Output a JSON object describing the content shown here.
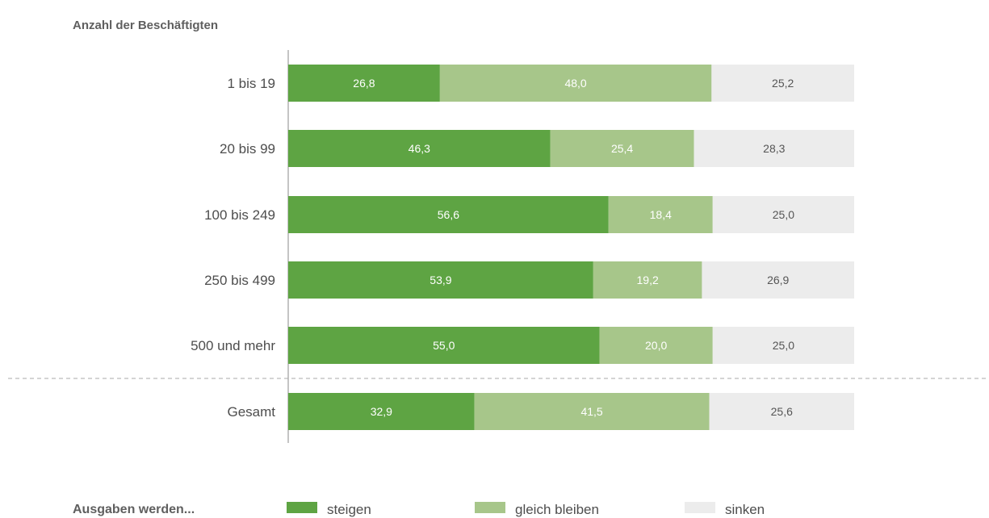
{
  "chart_data": {
    "type": "bar",
    "orientation": "horizontal",
    "stacked": true,
    "ytitle": "Anzahl der Beschäftigten",
    "categories": [
      "1 bis 19",
      "20 bis 99",
      "100 bis 249",
      "250 bis 499",
      "500 und mehr",
      "Gesamt"
    ],
    "separator_before": "Gesamt",
    "xlim": [
      0,
      100
    ],
    "grid": false,
    "legend": {
      "title": "Ausgaben werden...",
      "placement": "bottom"
    },
    "series": [
      {
        "name": "steigen",
        "color": "#5ea443",
        "label_color": "#ffffff",
        "values": [
          26.8,
          46.3,
          56.6,
          53.9,
          55.0,
          32.9
        ],
        "labels": [
          "26,8",
          "46,3",
          "56,6",
          "53,9",
          "55,0",
          "32,9"
        ]
      },
      {
        "name": "gleich bleiben",
        "color": "#a7c68a",
        "label_color": "#ffffff",
        "values": [
          48.0,
          25.4,
          18.4,
          19.2,
          20.0,
          41.5
        ],
        "labels": [
          "48,0",
          "25,4",
          "18,4",
          "19,2",
          "20,0",
          "41,5"
        ]
      },
      {
        "name": "sinken",
        "color": "#ececec",
        "label_color": "#555555",
        "values": [
          25.2,
          28.3,
          25.0,
          26.9,
          25.0,
          25.6
        ],
        "labels": [
          "25,2",
          "28,3",
          "25,0",
          "26,9",
          "25,0",
          "25,6"
        ]
      }
    ]
  }
}
